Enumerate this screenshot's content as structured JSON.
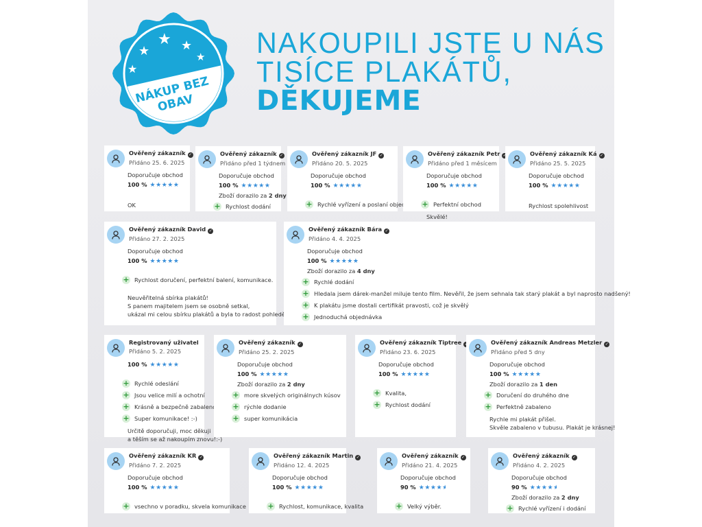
{
  "badge": {
    "line1": "NÁKUP BEZ",
    "line2": "OBAV",
    "color": "#1aa6d8"
  },
  "headline": {
    "line1": "NAKOUPILI JSTE U NÁS",
    "line2": "TISÍCE PLAKÁTŮ,",
    "line3": "DĚKUJEME"
  },
  "labels": {
    "recommend": "Doporučuje obchod",
    "delivery_prefix": "Zboží dorazilo za"
  },
  "colors": {
    "accent": "#1aa6d8",
    "star": "#3a8fd9",
    "avatar": "#a7d4f3",
    "pro": "#2f9a3a"
  },
  "reviews": [
    {
      "name": "Ověřený zákazník",
      "verified": true,
      "date": "Přidáno 25. 6. 2025",
      "recommend": true,
      "percent": "100 %",
      "rating": 100,
      "pros": [],
      "text": [
        "OK"
      ]
    },
    {
      "name": "Ověřený zákazník",
      "verified": true,
      "date": "Přidáno před 1 týdnem",
      "recommend": true,
      "percent": "100 %",
      "rating": 100,
      "delivery": "2 dny",
      "pros": [
        "Rychlost dodání"
      ],
      "text": []
    },
    {
      "name": "Ověřený zákazník JF",
      "verified": true,
      "date": "Přidáno 20. 5. 2025",
      "recommend": true,
      "percent": "100 %",
      "rating": 100,
      "pros": [
        "Rychlé vyřízení a poslaní objednávky"
      ],
      "text": []
    },
    {
      "name": "Ověřený zákazník Petr",
      "verified": true,
      "date": "Přidáno před 1 měsícem",
      "recommend": true,
      "percent": "100 %",
      "rating": 100,
      "pros": [
        "Perfektní obchod"
      ],
      "text": [
        "Skvělé!"
      ]
    },
    {
      "name": "Ověřený zákazník Ká",
      "verified": true,
      "date": "Přidáno 25. 5. 2025",
      "recommend": true,
      "percent": "100 %",
      "rating": 100,
      "pros": [],
      "text": [
        "Rychlost spolehlivost"
      ]
    },
    {
      "name": "Ověřený zákazník David",
      "verified": true,
      "date": "Přidáno 27. 2. 2025",
      "recommend": true,
      "percent": "100 %",
      "rating": 100,
      "pros": [
        "Rychlost doručení, perfektní balení, komunikace."
      ],
      "text": [
        "Neuvěřitelná sbírka plakátů!",
        "S panem majitelem jsem se osobně setkal,",
        "ukázal mi celou sbírku plakátů a byla to radost pohledět!"
      ]
    },
    {
      "name": "Ověřený zákazník Bára",
      "verified": true,
      "date": "Přidáno 4. 4. 2025",
      "recommend": true,
      "percent": "100 %",
      "rating": 100,
      "delivery": "4 dny",
      "pros": [
        "Rychlé dodání",
        "Hledala jsem dárek-manžel miluje tento film. Nevěřil, že jsem sehnala tak starý plakát a byl naprosto nadšený!",
        "K plakátu jsme dostali certifikát pravosti, což je skvělý",
        "Jednoduchá objednávka"
      ],
      "text": []
    },
    {
      "name": "Registrovaný uživatel",
      "verified": false,
      "date": "Přidáno 5. 2. 2025",
      "recommend": false,
      "percent": "100 %",
      "rating": 100,
      "pros": [
        "Rychlé odeslání",
        "Jsou velice milí a ochotní",
        "Krásně a bezpečně zabaleno",
        "Super komunikace! :-)"
      ],
      "text": [
        "Určitě doporučuji, moc děkuji",
        "a těším se až nakoupím znovu!:-)"
      ]
    },
    {
      "name": "Ověřený zákazník",
      "verified": true,
      "date": "Přidáno 25. 2. 2025",
      "recommend": true,
      "percent": "100 %",
      "rating": 100,
      "delivery": "2 dny",
      "pros": [
        "more skvelých originálnych kúsov",
        "rýchle dodanie",
        "super komunikácia"
      ],
      "text": []
    },
    {
      "name": "Ověřený zákazník Tiptree",
      "verified": true,
      "date": "Přidáno 23. 6. 2025",
      "recommend": true,
      "percent": "100 %",
      "rating": 100,
      "pros": [
        "Kvalita,",
        "Rychlost dodání"
      ],
      "text": []
    },
    {
      "name": "Ověřený zákazník Andreas Metzler",
      "verified": true,
      "date": "Přidáno před 5 dny",
      "recommend": true,
      "percent": "100 %",
      "rating": 100,
      "delivery": "1 den",
      "pros": [
        "Doručení do druhého dne",
        "Perfektně zabaleno"
      ],
      "text": [
        "Rychle mi plakát přišel.",
        "Skvěle zabaleno v tubusu. Plakát je krásnej!"
      ]
    },
    {
      "name": "Ověřený zákazník KR",
      "verified": true,
      "date": "Přidáno 7. 2. 2025",
      "recommend": true,
      "percent": "100 %",
      "rating": 100,
      "pros": [
        "vsechno v poradku, skvela komunikace"
      ],
      "text": []
    },
    {
      "name": "Ověřený zákazník Martin",
      "verified": true,
      "date": "Přidáno 12. 4. 2025",
      "recommend": true,
      "percent": "100 %",
      "rating": 100,
      "pros": [
        "Rychlost, komunikace, kvalita"
      ],
      "text": []
    },
    {
      "name": "Ověřený zákazník",
      "verified": true,
      "date": "Přidáno 21. 4. 2025",
      "recommend": true,
      "percent": "90 %",
      "rating": 90,
      "pros": [
        "Velký výběr."
      ],
      "text": []
    },
    {
      "name": "Ověřený zákazník",
      "verified": true,
      "date": "Přidáno 4. 2. 2025",
      "recommend": true,
      "percent": "90 %",
      "rating": 90,
      "delivery": "2 dny",
      "pros": [
        "Rychlé vyřízení i dodání"
      ],
      "text": []
    }
  ]
}
